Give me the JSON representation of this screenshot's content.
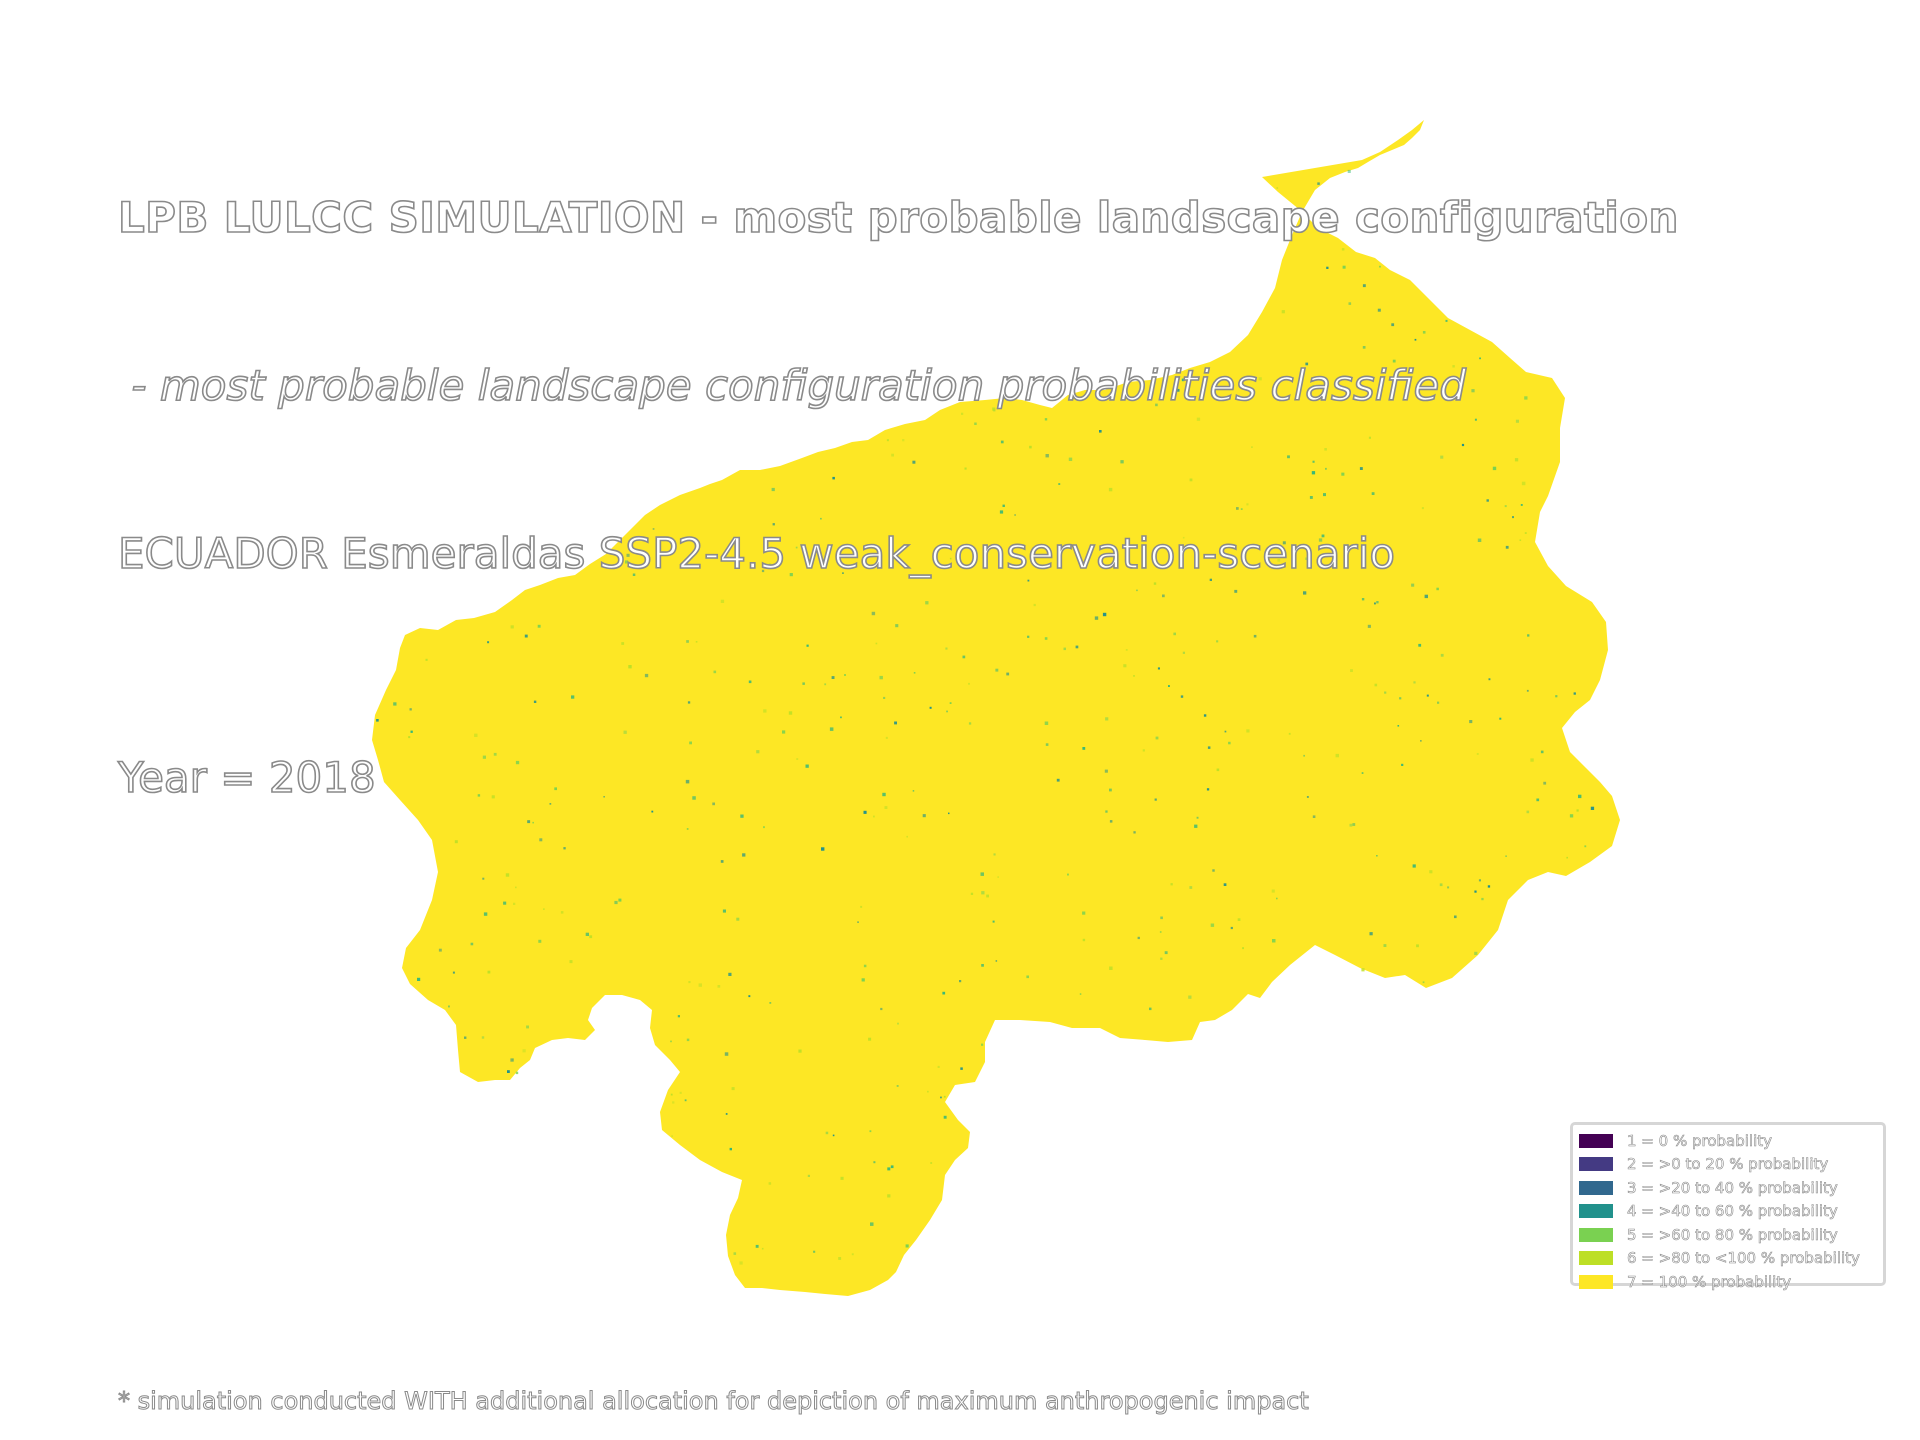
{
  "title": {
    "line1": "LPB LULCC SIMULATION - most probable landscape configuration",
    "line2": " - most probable landscape configuration probabilities classified",
    "line3": "ECUADOR Esmeraldas SSP2-4.5 weak_conservation-scenario",
    "year": "Year = 2018"
  },
  "map": {
    "fill_color": "#fde725",
    "speckle_colors": [
      "#35b779",
      "#21918c",
      "#7ad151",
      "#bddf26"
    ]
  },
  "legend": {
    "items": [
      {
        "label": "1 = 0 % probability",
        "color": "#440154"
      },
      {
        "label": "2 = >0 to 20 % probability",
        "color": "#443a83"
      },
      {
        "label": "3 = >20 to 40 % probability",
        "color": "#31688e"
      },
      {
        "label": "4 = >40 to 60 % probability",
        "color": "#21918c"
      },
      {
        "label": "5 = >60 to 80 % probability",
        "color": "#7ad151"
      },
      {
        "label": "6 = >80 to <100 % probability",
        "color": "#bddf26"
      },
      {
        "label": "7 = 100 % probability",
        "color": "#fde725"
      }
    ]
  },
  "footnote": "* simulation conducted WITH additional allocation for depiction of maximum anthropogenic impact"
}
